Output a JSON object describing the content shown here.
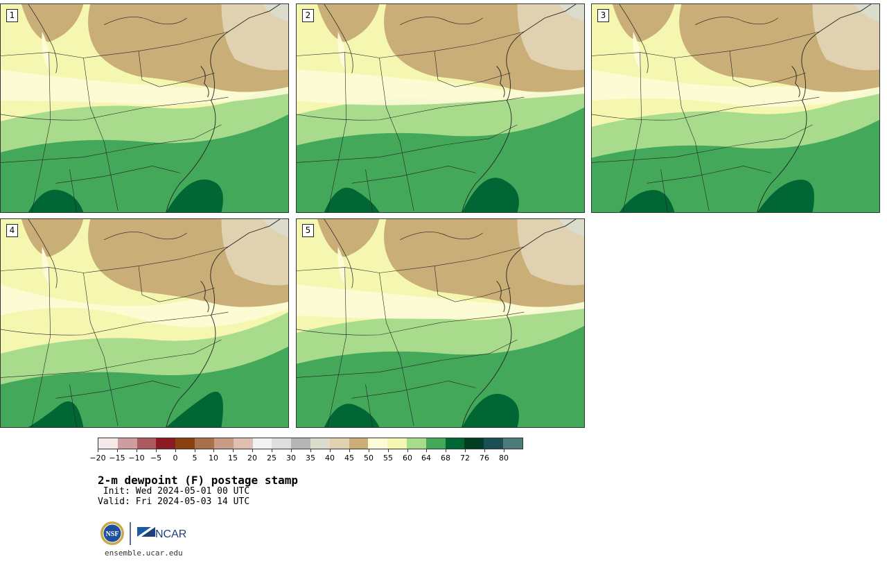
{
  "panels": [
    {
      "label": "1"
    },
    {
      "label": "2"
    },
    {
      "label": "3"
    },
    {
      "label": "4"
    },
    {
      "label": "5"
    }
  ],
  "colorbar": {
    "colors": [
      "#f4e8e8",
      "#cf9ca0",
      "#ad5a5f",
      "#8b1a23",
      "#8a4310",
      "#a8704d",
      "#c89c84",
      "#dfc0b0",
      "#f2f2f2",
      "#dedede",
      "#b5b5b5",
      "#dcdccc",
      "#e0d2b0",
      "#c9ae78",
      "#fdfbd8",
      "#f5f7b0",
      "#a8dc8c",
      "#43a85a",
      "#006634",
      "#003d23",
      "#1b4f55",
      "#4d7c7a"
    ],
    "tick_labels": [
      "−20",
      "−15",
      "−10",
      "−5",
      "0",
      "5",
      "10",
      "15",
      "20",
      "25",
      "30",
      "35",
      "40",
      "45",
      "50",
      "55",
      "60",
      "64",
      "68",
      "72",
      "76",
      "80"
    ]
  },
  "title": "2-m dewpoint (F) postage stamp",
  "init": " Init: Wed 2024-05-01 00 UTC",
  "valid": "Valid: Fri 2024-05-03 14 UTC",
  "logos": {
    "nsf": "NSF",
    "ncar": "NCAR"
  },
  "url": "ensemble.ucar.edu"
}
